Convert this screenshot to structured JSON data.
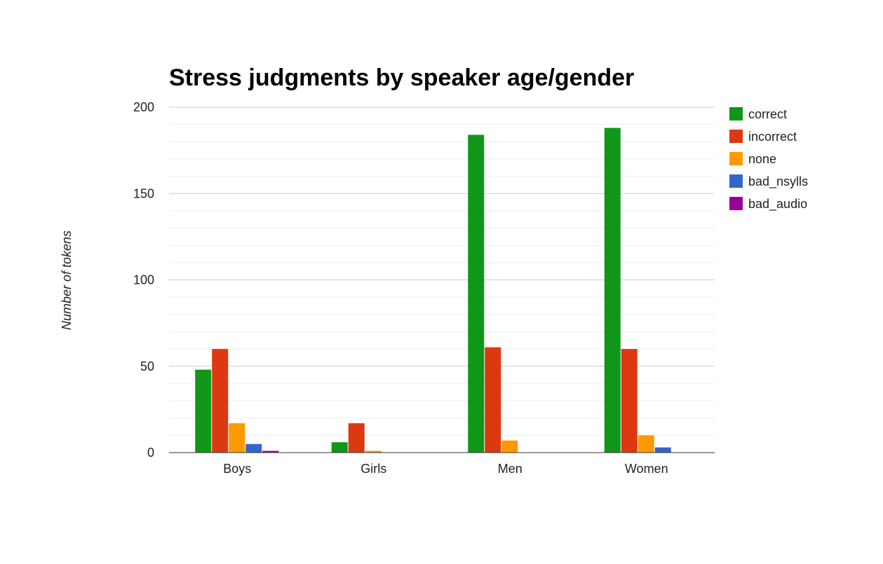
{
  "chart_data": {
    "type": "bar",
    "title": "Stress judgments by speaker age/gender",
    "xlabel": "",
    "ylabel": "Number of tokens",
    "categories": [
      "Boys",
      "Girls",
      "Men",
      "Women"
    ],
    "ylim": [
      0,
      200
    ],
    "yticks": [
      0,
      50,
      100,
      150,
      200
    ],
    "minor_grid_step": 10,
    "grid": true,
    "legend_position": "right",
    "series": [
      {
        "name": "correct",
        "color": "#109618",
        "values": [
          48,
          6,
          184,
          188
        ]
      },
      {
        "name": "incorrect",
        "color": "#dc3912",
        "values": [
          60,
          17,
          61,
          60
        ]
      },
      {
        "name": "none",
        "color": "#ff9900",
        "values": [
          17,
          1,
          7,
          10
        ]
      },
      {
        "name": "bad_nsylls",
        "color": "#3366cc",
        "values": [
          5,
          0,
          0,
          3
        ]
      },
      {
        "name": "bad_audio",
        "color": "#990099",
        "values": [
          1,
          0,
          0,
          0
        ]
      }
    ]
  }
}
